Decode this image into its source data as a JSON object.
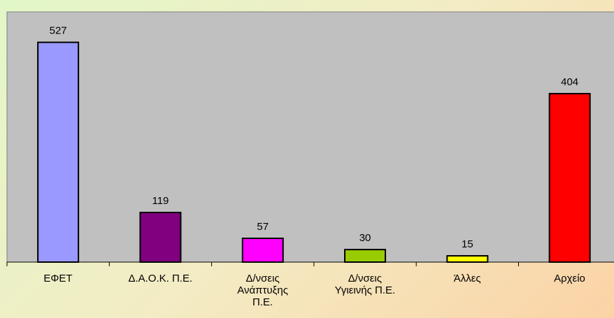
{
  "chart_data": {
    "type": "bar",
    "categories": [
      "ΕΦΕΤ",
      "Δ.Α.Ο.Κ.  Π.Ε.",
      "Δ/νσεις\nΑνάπτυξης\nΠ.Ε.",
      "Δ/νσεις\nΥγιεινής  Π.Ε.",
      "Άλλες",
      "Αρχείο"
    ],
    "values": [
      527,
      119,
      57,
      30,
      15,
      404
    ],
    "colors": [
      "#9999ff",
      "#800080",
      "#ff00ff",
      "#99cc00",
      "#ffff00",
      "#ff0000"
    ],
    "ylim": [
      0,
      600
    ]
  }
}
